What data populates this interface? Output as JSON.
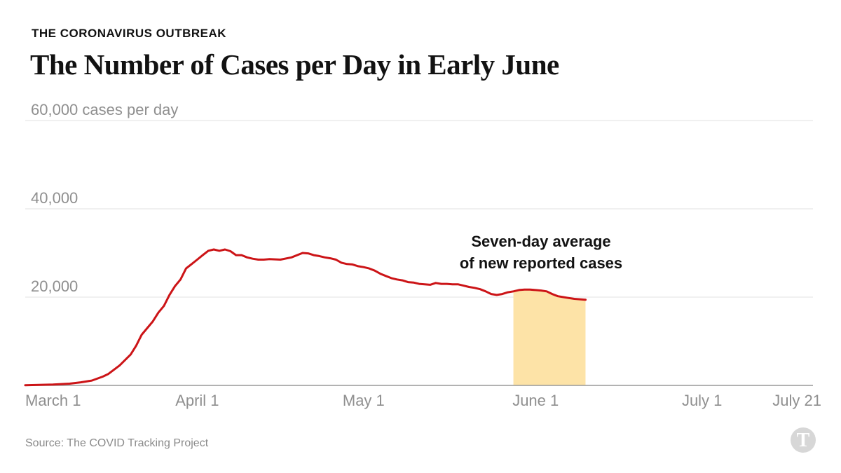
{
  "header": {
    "kicker": "THE CORONAVIRUS OUTBREAK",
    "title": "The Number of Cases per Day in Early June"
  },
  "source": "Source: The COVID Tracking Project",
  "logo": {
    "icon": "nyt-t-logo-icon"
  },
  "colors": {
    "line": "#cc1417",
    "highlight": "#fde3a7",
    "grid": "#e2e2e2",
    "axis": "#999999",
    "tick_text": "#8f8f8f"
  },
  "chart_data": {
    "type": "line",
    "title": "The Number of Cases per Day in Early June",
    "ylabel": "cases per day",
    "ylim": [
      0,
      60000
    ],
    "xlim": [
      "2020-03-01",
      "2020-07-21"
    ],
    "y_ticks": [
      {
        "value": 20000,
        "label": "20,000"
      },
      {
        "value": 40000,
        "label": "40,000"
      },
      {
        "value": 60000,
        "label": "60,000 cases per day"
      }
    ],
    "x_ticks": [
      {
        "day": 0,
        "label": "March 1"
      },
      {
        "day": 31,
        "label": "April 1"
      },
      {
        "day": 61,
        "label": "May 1"
      },
      {
        "day": 92,
        "label": "June 1"
      },
      {
        "day": 122,
        "label": "July 1"
      },
      {
        "day": 142,
        "label": "July 21"
      }
    ],
    "highlight": {
      "start_day": 88,
      "end_day": 101
    },
    "annotation": {
      "line1": "Seven-day average",
      "line2": "of new reported cases"
    },
    "series": [
      {
        "name": "Seven-day average of new reported cases",
        "x": [
          0,
          5,
          8,
          10,
          12,
          14,
          15,
          17,
          19,
          20,
          21,
          23,
          24,
          25,
          26,
          27,
          28,
          29,
          30,
          31,
          32,
          33,
          34,
          35,
          36,
          37,
          38,
          39,
          40,
          41,
          42,
          43,
          44,
          46,
          48,
          50,
          51,
          52,
          53,
          54,
          55,
          56,
          57,
          58,
          59,
          60,
          61,
          62,
          63,
          64,
          65,
          66,
          67,
          68,
          69,
          70,
          71,
          72,
          73,
          74,
          75,
          76,
          77,
          78,
          79,
          80,
          81,
          82,
          83,
          84,
          85,
          86,
          87,
          88,
          89,
          90,
          91,
          92,
          93,
          94,
          95,
          96,
          97,
          98,
          99,
          100,
          101
        ],
        "values": [
          50,
          200,
          400,
          700,
          1100,
          2000,
          2600,
          4500,
          7000,
          9000,
          11500,
          14500,
          16500,
          18000,
          20500,
          22500,
          24000,
          26500,
          27500,
          28500,
          29500,
          30500,
          30800,
          30500,
          30800,
          30400,
          29500,
          29500,
          29000,
          28700,
          28500,
          28500,
          28600,
          28500,
          29000,
          30000,
          29900,
          29500,
          29300,
          29000,
          28800,
          28500,
          27800,
          27500,
          27400,
          27000,
          26800,
          26500,
          26000,
          25300,
          24800,
          24300,
          24000,
          23800,
          23400,
          23300,
          23000,
          22900,
          22800,
          23200,
          23000,
          23000,
          22900,
          22900,
          22600,
          22300,
          22100,
          21800,
          21300,
          20700,
          20500,
          20700,
          21100,
          21300,
          21600,
          21700,
          21700,
          21600,
          21500,
          21300,
          20700,
          20200,
          20000,
          19800,
          19600,
          19500,
          19400
        ]
      }
    ]
  }
}
